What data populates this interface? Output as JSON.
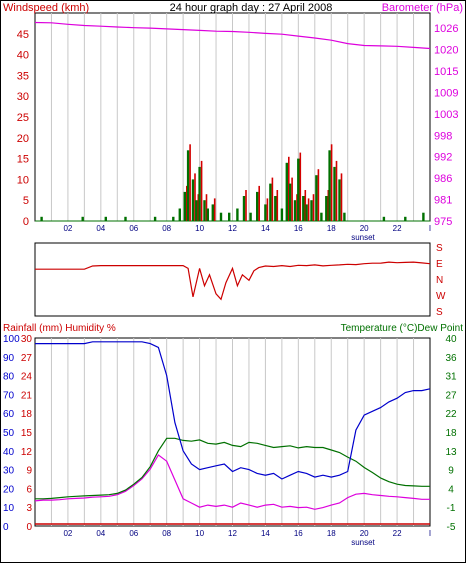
{
  "colors": {
    "wind": "#d40000",
    "windBar": "#007000",
    "baro": "#dd00dd",
    "dir": "#cc0000",
    "hum": "#0000cc",
    "temp": "#007000",
    "dew": "#dd00dd",
    "rain": "#cc0000",
    "grid": "#c8c8c8",
    "axisText": "#000080"
  },
  "chart_data": [
    {
      "type": "bar",
      "title": "24 hour graph day : 27 April 2008",
      "ylabel_left": "Windspeed (kmh)",
      "ylabel_right": "Barometer (hPa)",
      "left_ticks": [
        "0",
        "5",
        "10",
        "15",
        "20",
        "25",
        "30",
        "35",
        "40",
        "45"
      ],
      "right_ticks": [
        "975",
        "981",
        "986",
        "992",
        "998",
        "1003",
        "1009",
        "1015",
        "1020",
        "1026"
      ],
      "x_ticks": [
        "02",
        "04",
        "06",
        "08",
        "10",
        "12",
        "14",
        "16",
        "18",
        "20",
        "22",
        "I"
      ],
      "x_note": "sunset",
      "ylim_left": [
        0,
        50
      ],
      "ylim_right": [
        975,
        1030
      ],
      "grid": true,
      "series": [
        {
          "name": "Barometer (hPa)",
          "type": "line",
          "x": [
            0,
            1,
            2,
            3,
            4,
            5,
            6,
            7,
            8,
            9,
            10,
            11,
            12,
            13,
            14,
            15,
            16,
            17,
            18,
            19,
            20,
            21,
            22,
            23,
            24
          ],
          "values": [
            1027.5,
            1027.4,
            1027.0,
            1026.7,
            1026.5,
            1026.3,
            1026.1,
            1026.0,
            1025.8,
            1025.6,
            1025.4,
            1025.2,
            1025.1,
            1024.9,
            1024.6,
            1024.4,
            1023.9,
            1023.4,
            1022.8,
            1021.9,
            1021.4,
            1021.3,
            1021.2,
            1020.9,
            1020.6
          ]
        },
        {
          "name": "Windspeed (kmh)",
          "type": "bar",
          "x": [
            0.4,
            2.9,
            4.3,
            5.5,
            7.3,
            8.4,
            8.8,
            9.1,
            9.3,
            9.6,
            9.8,
            10.0,
            10.3,
            10.5,
            10.8,
            11.3,
            11.8,
            12.3,
            12.7,
            13.1,
            13.5,
            14.0,
            14.3,
            14.6,
            15.0,
            15.3,
            15.5,
            15.8,
            16.0,
            16.3,
            16.5,
            16.8,
            17.1,
            17.4,
            17.7,
            17.9,
            18.2,
            18.5,
            18.8,
            21.2,
            22.5,
            23.6
          ],
          "values": [
            1,
            1,
            1,
            1,
            1,
            1,
            3,
            7,
            17,
            10,
            5,
            13,
            5,
            3,
            4,
            2,
            2,
            3,
            6,
            2,
            7,
            4,
            9,
            6,
            3,
            14,
            9,
            5,
            15,
            6,
            4,
            5,
            11,
            2,
            6,
            17,
            13,
            10,
            2,
            1,
            1,
            2
          ]
        }
      ]
    },
    {
      "type": "line",
      "title": "",
      "ylabel_right": [
        "S",
        "E",
        "N",
        "W",
        "S"
      ],
      "x": [
        0,
        0.5,
        1,
        1.5,
        2,
        2.5,
        3,
        3.5,
        4,
        4.5,
        5,
        5.5,
        6,
        6.5,
        7,
        7.5,
        8,
        8.5,
        9,
        9.3,
        9.6,
        10,
        10.3,
        10.6,
        11,
        11.3,
        11.6,
        12,
        12.3,
        12.6,
        13,
        13.3,
        13.6,
        14,
        14.5,
        15,
        15.5,
        16,
        16.5,
        17,
        17.5,
        18,
        18.5,
        19,
        19.5,
        20,
        20.5,
        21,
        21.5,
        22,
        22.5,
        23,
        23.5,
        24
      ],
      "series": [
        {
          "name": "",
          "values": [
            245,
            245,
            245,
            245,
            245,
            245,
            245,
            265,
            268,
            268,
            268,
            268,
            268,
            268,
            268,
            268,
            268,
            268,
            268,
            250,
            70,
            250,
            140,
            210,
            90,
            55,
            160,
            250,
            140,
            210,
            175,
            235,
            255,
            265,
            262,
            268,
            262,
            270,
            268,
            272,
            266,
            270,
            272,
            276,
            274,
            280,
            283,
            283,
            290,
            286,
            288,
            290,
            285,
            280
          ]
        }
      ]
    },
    {
      "type": "line",
      "title": "",
      "ylabel_left": "Rainfall (mm)  Humidity %",
      "ylabel_right": "Temperature (°C)Dew Point",
      "humidity_ticks": [
        "100",
        "90",
        "80",
        "70",
        "60",
        "50",
        "40",
        "30",
        "20",
        "10",
        "0"
      ],
      "rain_ticks": [
        "30",
        "27",
        "24",
        "21",
        "18",
        "15",
        "12",
        "9",
        "6",
        "3",
        "0"
      ],
      "temp_ticks": [
        "40",
        "36",
        "31",
        "27",
        "22",
        "18",
        "13",
        "9",
        "4",
        "-1",
        "-5"
      ],
      "x_ticks": [
        "02",
        "04",
        "06",
        "08",
        "10",
        "12",
        "14",
        "16",
        "18",
        "20",
        "22",
        "I"
      ],
      "x_note": "sunset",
      "ylim_humidity": [
        0,
        100
      ],
      "ylim_temp": [
        -5,
        40
      ],
      "grid": true,
      "x": [
        0,
        0.5,
        1,
        1.5,
        2,
        2.5,
        3,
        3.5,
        4,
        4.5,
        5,
        5.5,
        6,
        6.5,
        7,
        7.5,
        8,
        8.5,
        9,
        9.5,
        10,
        10.5,
        11,
        11.5,
        12,
        12.5,
        13,
        13.5,
        14,
        14.5,
        15,
        15.5,
        16,
        16.5,
        17,
        17.5,
        18,
        18.5,
        19,
        19.5,
        20,
        20.5,
        21,
        21.5,
        22,
        22.5,
        23,
        23.5,
        24
      ],
      "series": [
        {
          "name": "Humidity %",
          "values": [
            97,
            97,
            97,
            97,
            97,
            97,
            97,
            98,
            98,
            98,
            98,
            98,
            98,
            98,
            97,
            95,
            80,
            55,
            40,
            33,
            30,
            31,
            32,
            33,
            29,
            31,
            30,
            28,
            27,
            28,
            25,
            27,
            29,
            28,
            26,
            27,
            26,
            27,
            29,
            51,
            59,
            61,
            63,
            66,
            68,
            71,
            72,
            72,
            73
          ]
        },
        {
          "name": "Temperature (°C)",
          "values": [
            1.5,
            1.5,
            1.6,
            1.8,
            2.0,
            2.1,
            2.2,
            2.3,
            2.4,
            2.5,
            2.8,
            3.6,
            5.0,
            6.6,
            9.2,
            13.0,
            16.0,
            16.0,
            15.5,
            15.3,
            15.6,
            14.8,
            14.6,
            15.0,
            14.3,
            14.0,
            15.0,
            14.8,
            14.3,
            13.8,
            14.0,
            14.2,
            13.7,
            14.0,
            13.8,
            13.8,
            13.2,
            12.6,
            11.5,
            10.5,
            9.0,
            7.8,
            6.5,
            5.6,
            5.0,
            4.7,
            4.6,
            4.5,
            4.5
          ]
        },
        {
          "name": "Dew Point",
          "values": [
            1.0,
            1.2,
            1.2,
            1.3,
            1.5,
            1.6,
            1.7,
            1.9,
            2.0,
            2.1,
            2.5,
            3.3,
            4.7,
            6.3,
            8.6,
            12.0,
            10.5,
            6.0,
            1.5,
            0.5,
            -0.5,
            0.0,
            -0.3,
            0.0,
            -0.5,
            0.5,
            0.0,
            -0.5,
            0.0,
            0.2,
            -0.5,
            -0.3,
            -0.6,
            -0.5,
            -1.0,
            -0.6,
            0.0,
            0.5,
            1.8,
            2.6,
            2.8,
            2.5,
            2.3,
            2.1,
            2.0,
            1.8,
            1.6,
            1.4,
            1.4
          ]
        },
        {
          "name": "Rainfall (mm)",
          "values": [
            0,
            0,
            0,
            0,
            0,
            0,
            0,
            0,
            0,
            0,
            0,
            0,
            0,
            0,
            0,
            0,
            0,
            0,
            0,
            0,
            0,
            0,
            0,
            0,
            0,
            0,
            0,
            0,
            0,
            0,
            0,
            0,
            0,
            0,
            0,
            0,
            0,
            0,
            0,
            0,
            0,
            0,
            0,
            0,
            0,
            0,
            0,
            0,
            0
          ]
        }
      ]
    }
  ]
}
